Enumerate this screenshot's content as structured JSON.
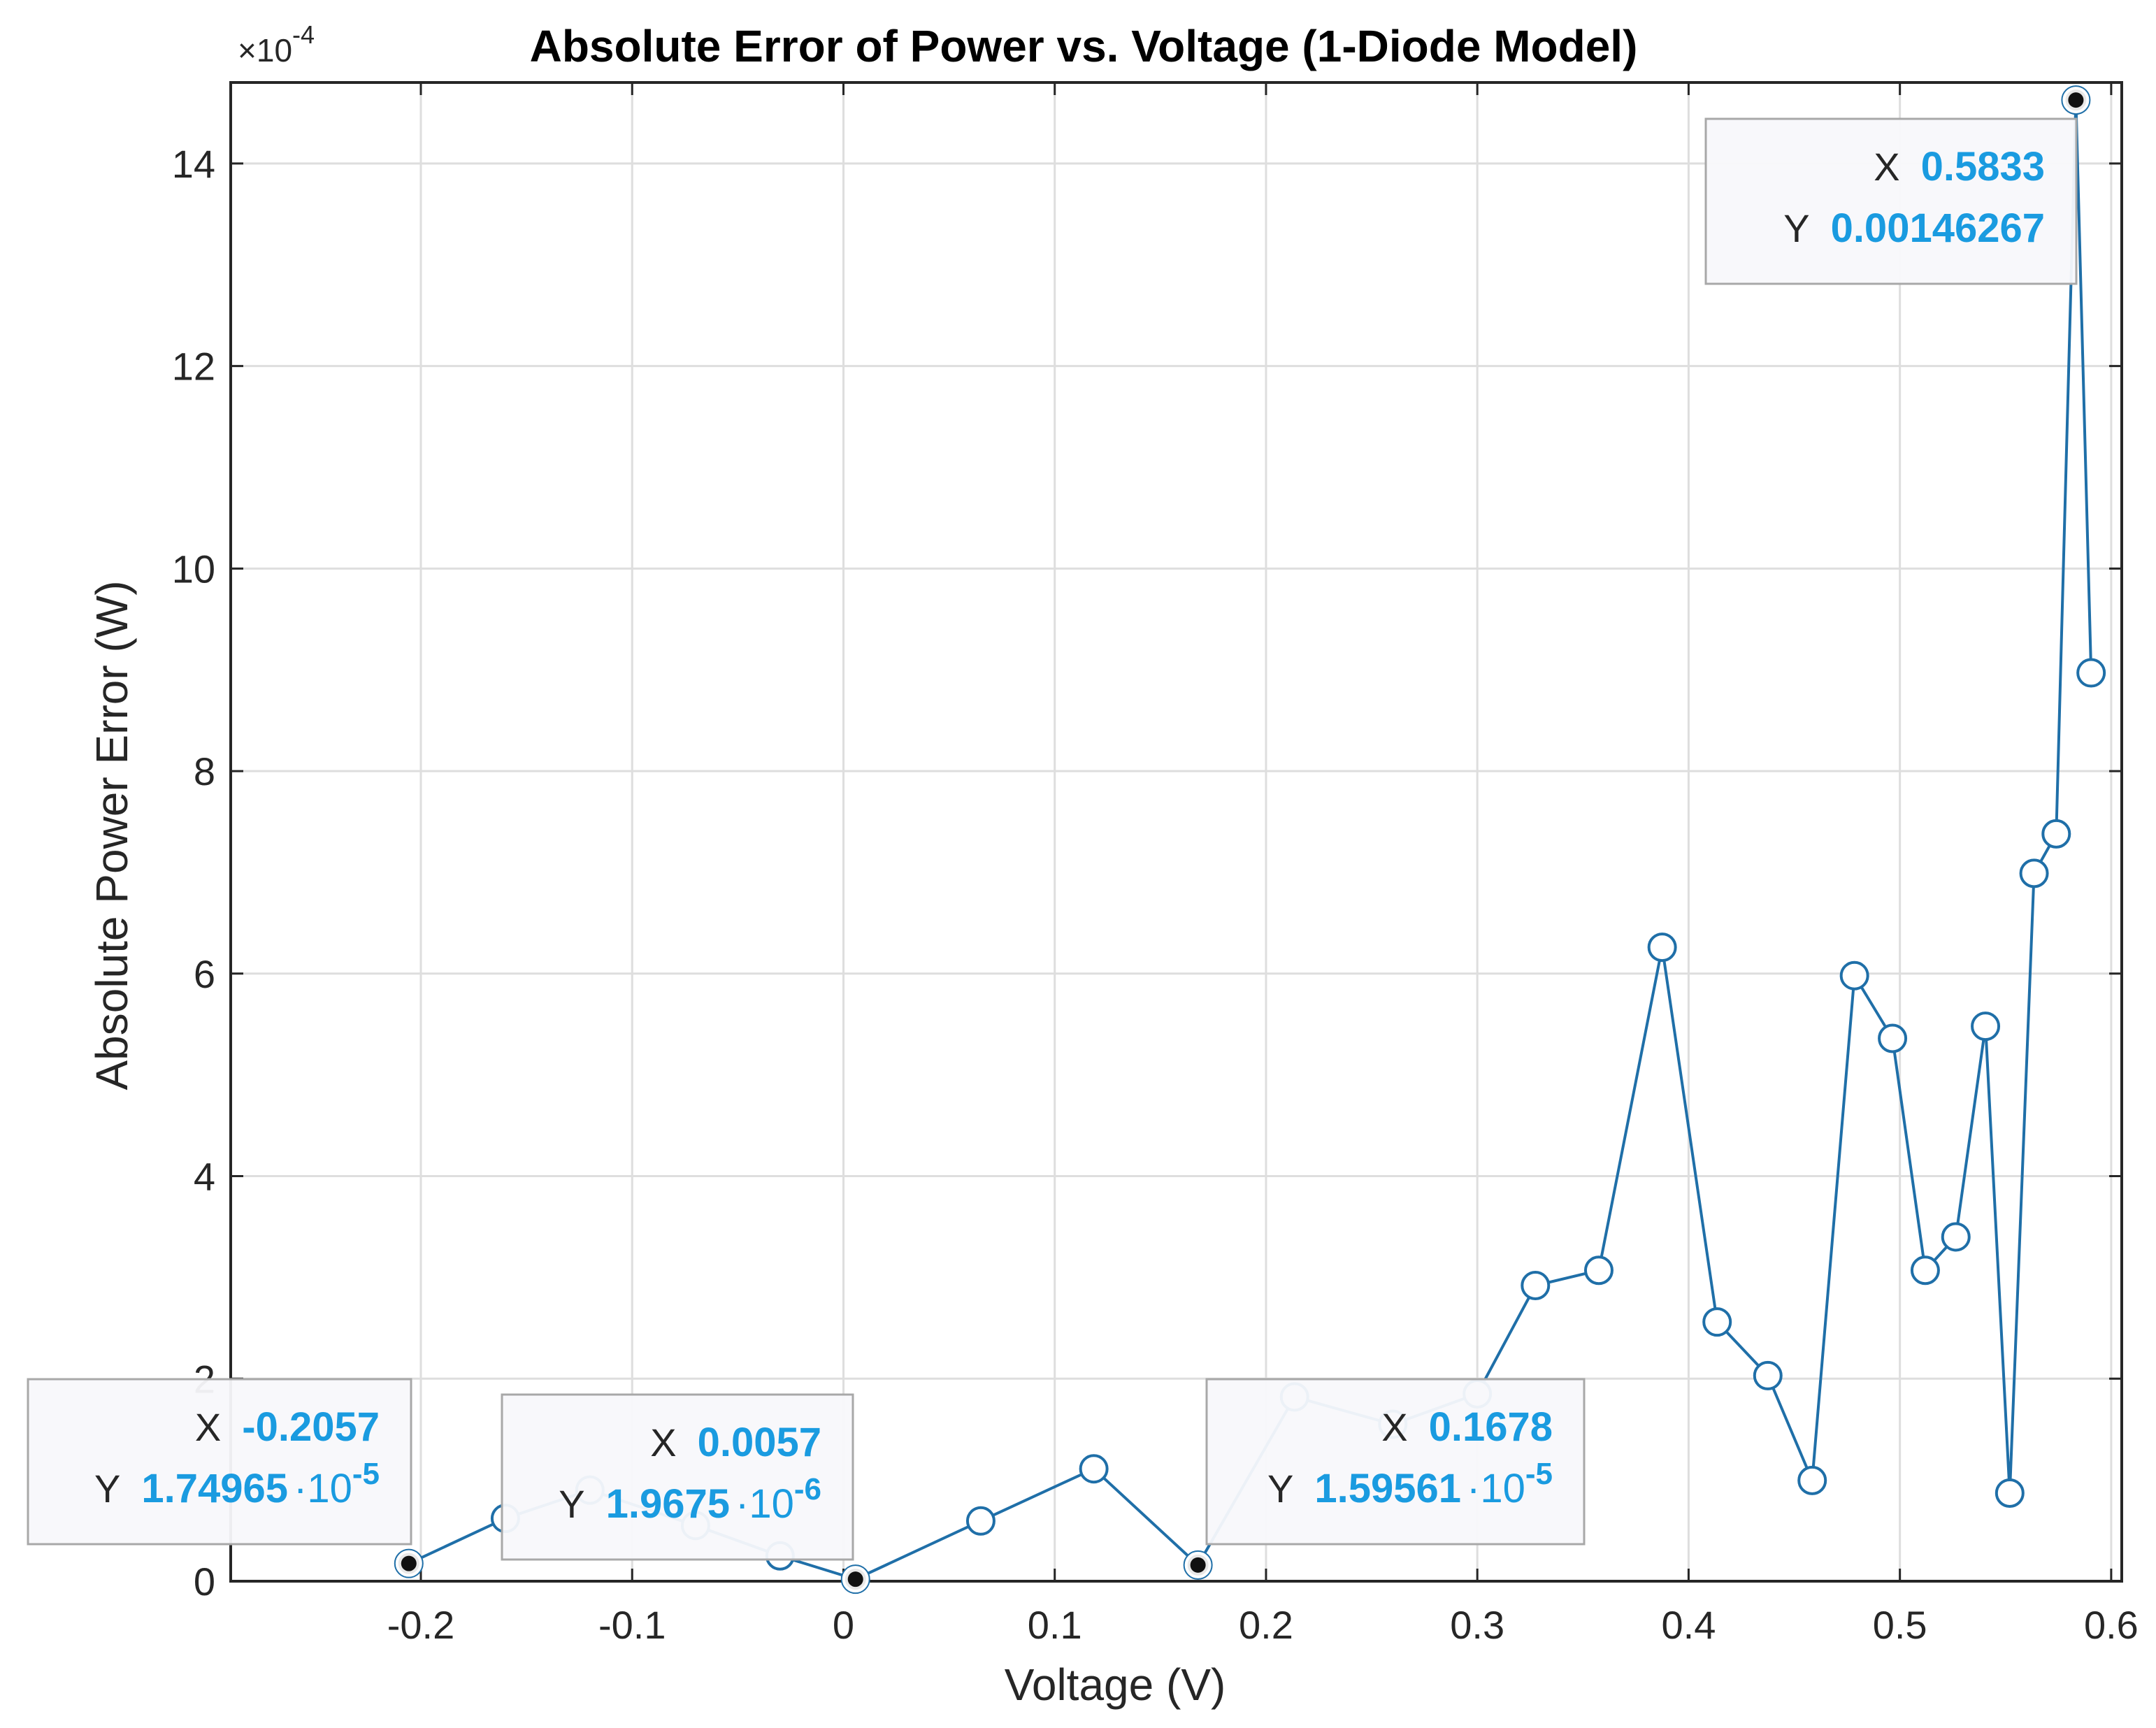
{
  "chart_data": {
    "type": "line",
    "title": "Absolute Error of Power vs. Voltage (1-Diode Model)",
    "xlabel": "Voltage (V)",
    "ylabel": "Absolute Power Error (W)",
    "y_exponent_label": "×10",
    "y_exponent": "-4",
    "xlim": [
      -0.29,
      0.605
    ],
    "ylim": [
      0,
      0.00148
    ],
    "xticks": [
      -0.2,
      -0.1,
      0,
      0.1,
      0.2,
      0.3,
      0.4,
      0.5,
      0.6
    ],
    "xtick_labels": [
      "-0.2",
      "-0.1",
      "0",
      "0.1",
      "0.2",
      "0.3",
      "0.4",
      "0.5",
      "0.6"
    ],
    "yticks": [
      0,
      0.0002,
      0.0004,
      0.0006,
      0.0008,
      0.001,
      0.0012,
      0.0014
    ],
    "ytick_labels": [
      "0",
      "2",
      "4",
      "6",
      "8",
      "10",
      "12",
      "14"
    ],
    "grid": true,
    "line_color": "#1f6fa8",
    "datatip_value_color": "#1a9be0",
    "series": [
      {
        "x": [
          -0.2057,
          -0.16,
          -0.12,
          -0.07,
          -0.03,
          0.0057,
          0.065,
          0.1185,
          0.1678,
          0.2135,
          0.26,
          0.3,
          0.3275,
          0.3575,
          0.3875,
          0.4135,
          0.4375,
          0.4585,
          0.4785,
          0.4965,
          0.512,
          0.5265,
          0.5405,
          0.552,
          0.5635,
          0.574,
          0.5833,
          0.5905
        ],
        "y": [
          1.74965e-05,
          6.2e-05,
          9e-05,
          5.5e-05,
          2.5e-05,
          1.9675e-06,
          5.95e-05,
          0.000111,
          1.59561e-05,
          0.000182,
          0.000155,
          0.000185,
          0.000292,
          0.000307,
          0.000626,
          0.000256,
          0.000203,
          9.95e-05,
          0.000598,
          0.000536,
          0.000307,
          0.00034,
          0.000548,
          8.7e-05,
          0.000699,
          0.000738,
          0.00146267,
          0.000897
        ]
      }
    ],
    "datatips": [
      {
        "x_label": "X",
        "x_value": "-0.2057",
        "y_label": "Y",
        "y_mantissa": "1.74965",
        "y_base": "·10",
        "y_exp": "-5",
        "point": [
          -0.2057,
          1.74965e-05
        ]
      },
      {
        "x_label": "X",
        "x_value": "0.0057",
        "y_label": "Y",
        "y_mantissa": "1.9675",
        "y_base": "·10",
        "y_exp": "-6",
        "point": [
          0.0057,
          1.9675e-06
        ]
      },
      {
        "x_label": "X",
        "x_value": "0.1678",
        "y_label": "Y",
        "y_mantissa": "1.59561",
        "y_base": "·10",
        "y_exp": "-5",
        "point": [
          0.1678,
          1.59561e-05
        ]
      },
      {
        "x_label": "X",
        "x_value": "0.5833",
        "y_label": "Y",
        "y_value": "0.00146267",
        "point": [
          0.5833,
          0.00146267
        ]
      }
    ]
  }
}
